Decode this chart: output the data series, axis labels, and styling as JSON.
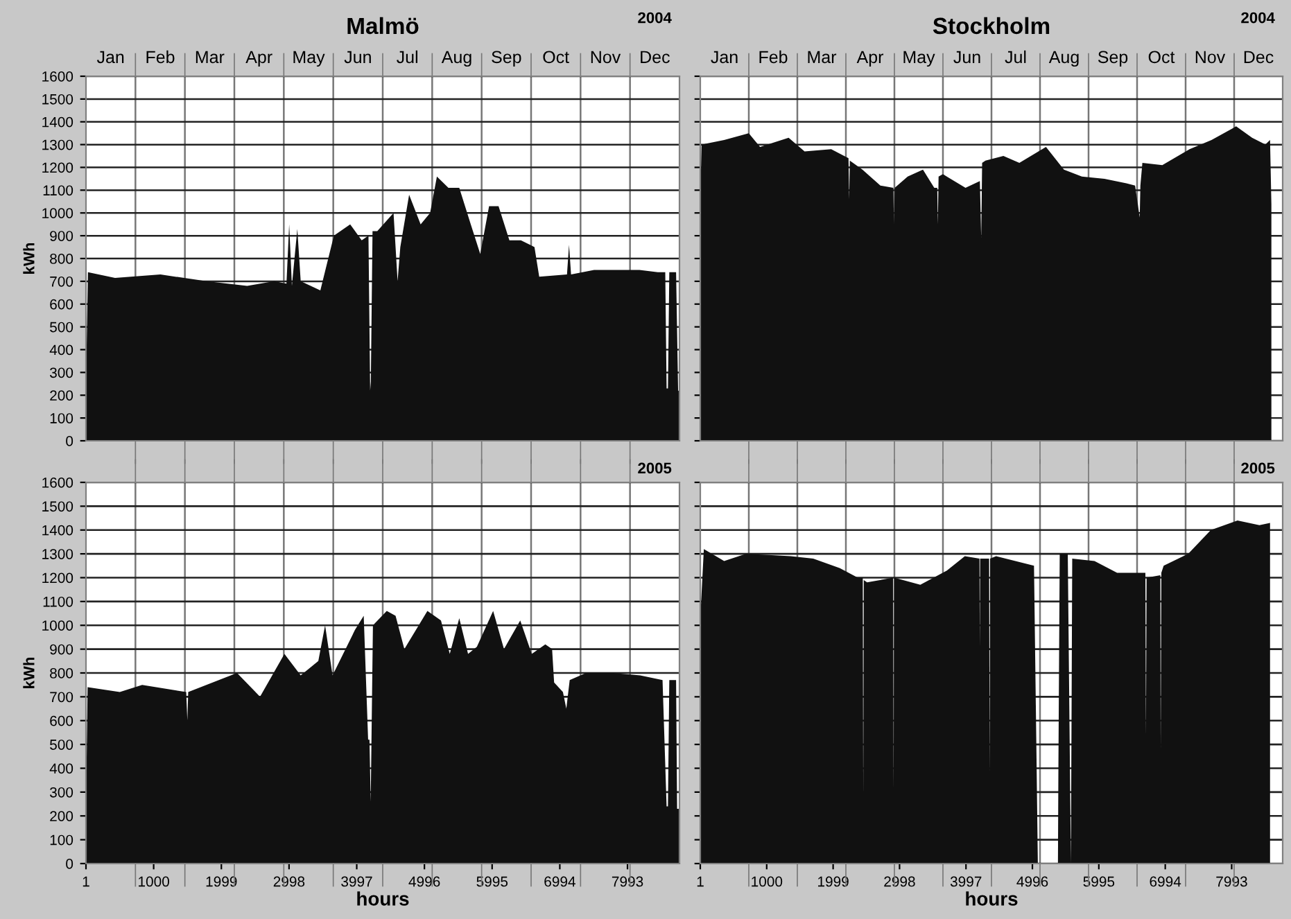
{
  "chart_data": [
    {
      "type": "area",
      "title": "Malmö",
      "subtitle": "2004",
      "ylabel": "kWh",
      "annotations": [
        "Jan",
        "Feb",
        "Mar",
        "Apr",
        "May",
        "Jun",
        "Jul",
        "Aug",
        "Sep",
        "Oct",
        "Nov",
        "Dec"
      ],
      "xlim": [
        1,
        8760
      ],
      "ylim": [
        0,
        1600
      ],
      "yticks": [
        0,
        100,
        200,
        300,
        400,
        500,
        600,
        700,
        800,
        900,
        1000,
        1100,
        1200,
        1300,
        1400,
        1500,
        1600
      ],
      "tick_labels": "y",
      "grid": true,
      "series": [
        {
          "color": "#111111",
          "x": [
            1,
            30,
            430,
            1100,
            1780,
            2380,
            2780,
            2960,
            3000,
            3040,
            3120,
            3170,
            3460,
            3660,
            3900,
            4070,
            4170,
            4195,
            4205,
            4230,
            4300,
            4540,
            4600,
            4640,
            4770,
            4940,
            5080,
            5180,
            5350,
            5510,
            5680,
            5820,
            5950,
            6090,
            6250,
            6420,
            6620,
            6690,
            7100,
            7130,
            7160,
            7500,
            8170,
            8440,
            8550,
            8570,
            8590,
            8610,
            8710,
            8740,
            8760
          ],
          "values": [
            240,
            740,
            715,
            730,
            700,
            680,
            700,
            690,
            950,
            680,
            930,
            700,
            660,
            900,
            950,
            880,
            900,
            220,
            260,
            920,
            920,
            1000,
            700,
            850,
            1080,
            950,
            1000,
            1160,
            1110,
            1110,
            950,
            820,
            1030,
            1030,
            880,
            880,
            850,
            720,
            730,
            860,
            730,
            750,
            750,
            740,
            740,
            230,
            230,
            740,
            740,
            220,
            220
          ]
        }
      ]
    },
    {
      "type": "area",
      "title": "Stockholm",
      "subtitle": "2004",
      "annotations": [
        "Jan",
        "Feb",
        "Mar",
        "Apr",
        "May",
        "Jun",
        "Jul",
        "Aug",
        "Sep",
        "Oct",
        "Nov",
        "Dec"
      ],
      "xlim": [
        1,
        8760
      ],
      "ylim": [
        0,
        1600
      ],
      "yticks": [
        0,
        100,
        200,
        300,
        400,
        500,
        600,
        700,
        800,
        900,
        1000,
        1100,
        1200,
        1300,
        1400,
        1500,
        1600
      ],
      "tick_labels": false,
      "grid": true,
      "series": [
        {
          "color": "#111111",
          "x": [
            1,
            20,
            360,
            730,
            900,
            1330,
            1570,
            1970,
            2230,
            2241,
            2250,
            2440,
            2710,
            2905,
            2914,
            2925,
            3120,
            3350,
            3520,
            3565,
            3574,
            3585,
            3650,
            3990,
            4206,
            4226,
            4240,
            4290,
            4560,
            4800,
            5200,
            5470,
            5740,
            6080,
            6410,
            6540,
            6610,
            6620,
            6650,
            6950,
            7360,
            7690,
            8060,
            8300,
            8500,
            8570,
            8590
          ],
          "values": [
            1050,
            1300,
            1320,
            1350,
            1290,
            1330,
            1270,
            1280,
            1240,
            1060,
            1230,
            1190,
            1120,
            1110,
            950,
            1110,
            1160,
            1190,
            1110,
            1110,
            950,
            1160,
            1170,
            1110,
            1140,
            890,
            1220,
            1230,
            1250,
            1220,
            1290,
            1190,
            1160,
            1150,
            1130,
            1120,
            980,
            1120,
            1220,
            1210,
            1280,
            1320,
            1380,
            1330,
            1300,
            1320,
            1040
          ]
        }
      ]
    },
    {
      "type": "area",
      "subtitle": "2005",
      "ylabel": "kWh",
      "xlabel": "hours",
      "xlim": [
        1,
        8760
      ],
      "xticks": [
        1,
        1000,
        1999,
        2998,
        3997,
        4996,
        5995,
        6994,
        7993
      ],
      "ylim": [
        0,
        1600
      ],
      "yticks": [
        0,
        100,
        200,
        300,
        400,
        500,
        600,
        700,
        800,
        900,
        1000,
        1100,
        1200,
        1300,
        1400,
        1500,
        1600
      ],
      "grid": true,
      "series": [
        {
          "color": "#111111",
          "x": [
            1,
            25,
            500,
            830,
            1480,
            1497,
            1510,
            2230,
            2570,
            2930,
            3170,
            3430,
            3530,
            3640,
            3970,
            4100,
            4165,
            4185,
            4203,
            4236,
            4440,
            4570,
            4700,
            5040,
            5240,
            5370,
            5510,
            5640,
            5770,
            6010,
            6170,
            6410,
            6580,
            6780,
            6880,
            6910,
            7040,
            7090,
            7140,
            7380,
            7780,
            8180,
            8510,
            8570,
            8590,
            8610,
            8710,
            8725,
            8760
          ],
          "values": [
            220,
            740,
            720,
            750,
            720,
            600,
            720,
            800,
            700,
            880,
            790,
            850,
            1000,
            790,
            980,
            1040,
            520,
            520,
            260,
            1000,
            1060,
            1040,
            900,
            1060,
            1020,
            880,
            1030,
            880,
            910,
            1060,
            900,
            1020,
            880,
            920,
            900,
            760,
            720,
            650,
            770,
            800,
            800,
            790,
            770,
            240,
            240,
            770,
            770,
            230,
            230
          ]
        }
      ]
    },
    {
      "type": "area",
      "subtitle": "2005",
      "xlabel": "hours",
      "xlim": [
        1,
        8760
      ],
      "xticks": [
        1,
        1000,
        1999,
        2998,
        3997,
        4996,
        5995,
        6994,
        7993
      ],
      "ylim": [
        0,
        1600
      ],
      "yticks": [
        0,
        100,
        200,
        300,
        400,
        500,
        600,
        700,
        800,
        900,
        1000,
        1100,
        1200,
        1300,
        1400,
        1500,
        1600
      ],
      "tick_labels": "x",
      "grid": true,
      "series": [
        {
          "color": "#111111",
          "x": [
            1,
            55,
            360,
            690,
            1360,
            1700,
            2100,
            2370,
            2445,
            2452,
            2460,
            2510,
            2900,
            2909,
            2918,
            3310,
            3710,
            3980,
            4200,
            4205,
            4210,
            4345,
            4353,
            4360,
            4450,
            5020,
            5058,
            5078,
            5380,
            5387,
            5407,
            5528,
            5554,
            5575,
            5595,
            5930,
            6270,
            6695,
            6704,
            6713,
            6920,
            6925,
            6935,
            6970,
            7340,
            7680,
            8080,
            8410,
            8570
          ],
          "values": [
            1030,
            1320,
            1270,
            1300,
            1290,
            1280,
            1240,
            1200,
            1200,
            290,
            1190,
            1180,
            1200,
            310,
            1200,
            1170,
            1230,
            1290,
            1280,
            910,
            1280,
            1280,
            370,
            1280,
            1290,
            1250,
            440,
            0,
            0,
            400,
            1300,
            1300,
            580,
            0,
            1280,
            1270,
            1220,
            1220,
            540,
            1200,
            1210,
            470,
            1220,
            1250,
            1300,
            1400,
            1440,
            1420,
            1430
          ]
        }
      ]
    }
  ]
}
